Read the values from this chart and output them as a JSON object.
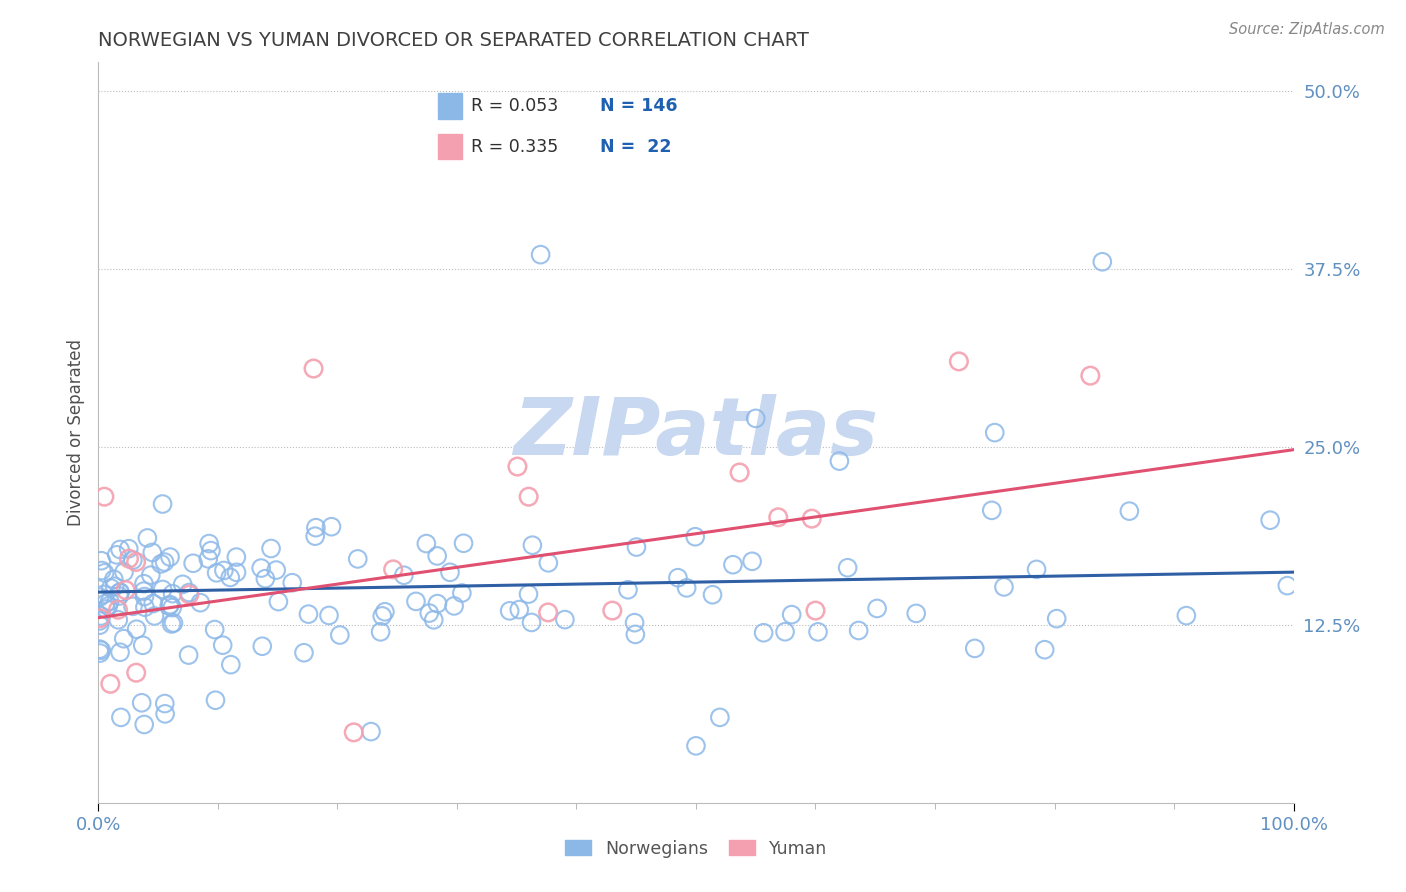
{
  "title": "NORWEGIAN VS YUMAN DIVORCED OR SEPARATED CORRELATION CHART",
  "source_text": "Source: ZipAtlas.com",
  "ylabel": "Divorced or Separated",
  "xlim": [
    0.0,
    1.0
  ],
  "ylim": [
    0.0,
    0.52
  ],
  "xtick_labels": [
    "0.0%",
    "100.0%"
  ],
  "ytick_labels": [
    "12.5%",
    "25.0%",
    "37.5%",
    "50.0%"
  ],
  "ytick_positions": [
    0.125,
    0.25,
    0.375,
    0.5
  ],
  "legend_labels": [
    "Norwegians",
    "Yuman"
  ],
  "blue_color": "#8CB8E8",
  "pink_color": "#F4A0B0",
  "blue_line_color": "#2F5FA5",
  "pink_line_color": "#E05070",
  "title_color": "#404040",
  "axis_color": "#6090C0",
  "legend_r_color": "#303030",
  "legend_n_color": "#2060B0",
  "watermark_color": "#C8D8F0",
  "grid_color": "#AAAAAA",
  "background_color": "#FFFFFF",
  "nor_regression_slope": 0.014,
  "nor_regression_intercept": 0.148,
  "yum_regression_slope": 0.118,
  "yum_regression_intercept": 0.13
}
